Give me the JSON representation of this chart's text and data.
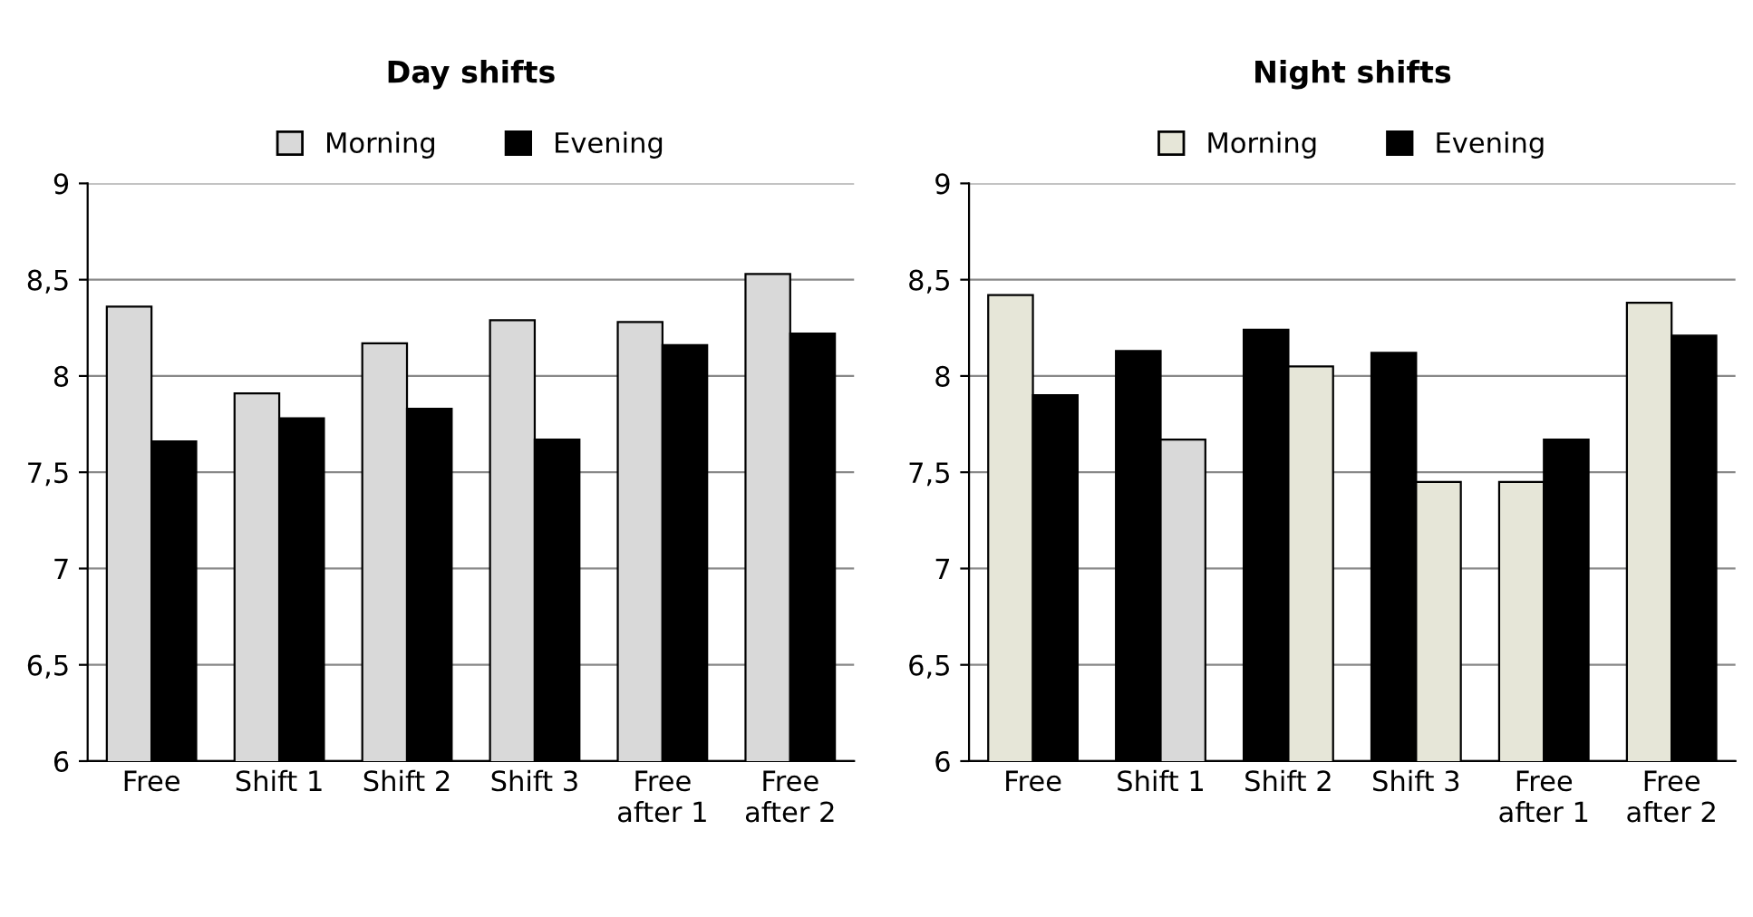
{
  "chart_data": [
    {
      "type": "bar",
      "title": "Day shifts",
      "categories": [
        "Free",
        "Shift 1",
        "Shift 2",
        "Shift 3",
        "Free\nafter 1",
        "Free\nafter 2"
      ],
      "series": [
        {
          "name": "Morning",
          "color": "#d9d9d9",
          "values": [
            8.36,
            7.91,
            8.17,
            8.29,
            8.28,
            8.53
          ]
        },
        {
          "name": "Evening",
          "color": "#000000",
          "values": [
            7.66,
            7.78,
            7.83,
            7.67,
            8.16,
            8.22
          ]
        }
      ],
      "ylim": [
        6,
        9
      ],
      "yticks": [
        6,
        {
          "value": 6.5,
          "label": "6,5"
        },
        7,
        {
          "value": 7.5,
          "label": "7,5"
        },
        8,
        {
          "value": 8.5,
          "label": "8,5"
        },
        9
      ],
      "grid": "y",
      "legend": "top"
    },
    {
      "type": "bar",
      "title": "Night shifts",
      "categories": [
        "Free",
        "Shift 1",
        "Shift 2",
        "Shift 3",
        "Free\nafter 1",
        "Free\nafter 2"
      ],
      "series": [
        {
          "name": "Morning",
          "color": "#e6e6d8",
          "values": [
            8.42,
            null,
            null,
            null,
            7.45,
            8.38
          ]
        },
        {
          "color": "#000000",
          "values": [
            null,
            8.13,
            8.24,
            8.12,
            null,
            null
          ]
        },
        {
          "name": "Evening",
          "color": "#000000",
          "values": [
            7.9,
            null,
            null,
            null,
            7.67,
            8.21
          ]
        },
        {
          "colors": [
            null,
            "#d9d9d9",
            "#e6e6d8",
            "#e6e6d8",
            null,
            null
          ],
          "values": [
            null,
            7.67,
            8.05,
            7.45,
            null,
            null
          ]
        }
      ],
      "ylim": [
        6,
        9
      ],
      "yticks": [
        6,
        {
          "value": 6.5,
          "label": "6,5"
        },
        7,
        {
          "value": 7.5,
          "label": "7,5"
        },
        8,
        {
          "value": 8.5,
          "label": "8,5"
        },
        9
      ],
      "grid": "y",
      "legend": "top"
    }
  ]
}
